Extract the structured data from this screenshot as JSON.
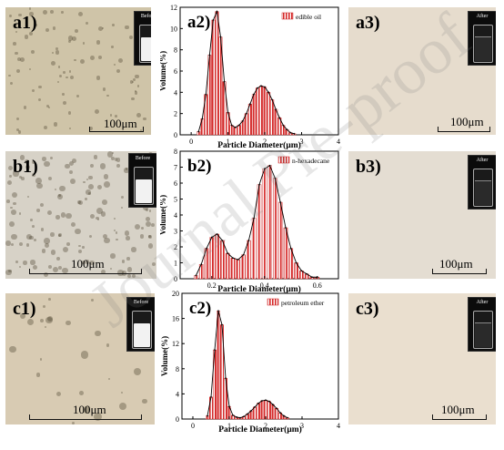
{
  "labels": {
    "a1": "a1)",
    "a2": "a2)",
    "a3": "a3)",
    "b1": "b1)",
    "b2": "b2)",
    "b3": "b3)",
    "c1": "c1)",
    "c2": "c2)",
    "c3": "c3)"
  },
  "thumb_labels": {
    "before": "Before",
    "after": "After"
  },
  "scale_label": "100μm",
  "watermark": "Journal Pre-proof",
  "chart_data": [
    {
      "type": "bar",
      "legend": "edible oil",
      "xlabel": "Particle Diameter(μm)",
      "ylabel": "Volume(%)",
      "xlim": [
        -0.3,
        4.0
      ],
      "ylim": [
        0,
        12
      ],
      "xticks": [
        0,
        1,
        2,
        3,
        4
      ],
      "yticks": [
        0,
        2,
        4,
        6,
        8,
        10,
        12
      ],
      "bar_width": 0.1,
      "x": [
        0.2,
        0.3,
        0.4,
        0.5,
        0.6,
        0.7,
        0.8,
        0.9,
        1.0,
        1.1,
        1.2,
        1.3,
        1.4,
        1.5,
        1.6,
        1.7,
        1.8,
        1.9,
        2.0,
        2.1,
        2.2,
        2.3,
        2.4,
        2.5,
        2.6,
        2.7,
        2.8
      ],
      "values": [
        0.3,
        1.5,
        3.8,
        7.5,
        10.8,
        11.6,
        9.2,
        5.0,
        2.1,
        0.9,
        0.7,
        0.9,
        1.3,
        2.0,
        2.9,
        3.8,
        4.4,
        4.6,
        4.5,
        4.0,
        3.3,
        2.4,
        1.6,
        0.9,
        0.5,
        0.2,
        0.1
      ]
    },
    {
      "type": "bar",
      "legend": "n-hexadecane",
      "xlabel": "Particle Diameter(μm)",
      "ylabel": "Volume(%)",
      "xlim": [
        0.08,
        0.68
      ],
      "ylim": [
        0,
        8
      ],
      "xticks": [
        0.2,
        0.4,
        0.6
      ],
      "yticks": [
        0,
        1,
        2,
        3,
        4,
        5,
        6,
        7,
        8
      ],
      "bar_width": 0.016,
      "x": [
        0.14,
        0.16,
        0.18,
        0.2,
        0.22,
        0.24,
        0.26,
        0.28,
        0.3,
        0.32,
        0.34,
        0.36,
        0.38,
        0.4,
        0.42,
        0.44,
        0.46,
        0.48,
        0.5,
        0.52,
        0.54,
        0.56,
        0.58,
        0.6
      ],
      "values": [
        0.2,
        0.9,
        1.9,
        2.6,
        2.8,
        2.4,
        1.6,
        1.3,
        1.2,
        1.5,
        2.4,
        3.8,
        5.9,
        6.9,
        7.1,
        6.3,
        4.8,
        3.2,
        1.9,
        1.0,
        0.5,
        0.3,
        0.1,
        0.1
      ]
    },
    {
      "type": "bar",
      "legend": "petroleum ether",
      "xlabel": "Particle Diameter(μm)",
      "ylabel": "Volume(%)",
      "xlim": [
        -0.3,
        4.0
      ],
      "ylim": [
        0,
        20
      ],
      "xticks": [
        0,
        1,
        2,
        3,
        4
      ],
      "yticks": [
        0,
        4,
        8,
        12,
        16,
        20
      ],
      "bar_width": 0.1,
      "x": [
        0.4,
        0.5,
        0.6,
        0.7,
        0.8,
        0.9,
        1.0,
        1.1,
        1.2,
        1.3,
        1.4,
        1.5,
        1.6,
        1.7,
        1.8,
        1.9,
        2.0,
        2.1,
        2.2,
        2.3,
        2.4,
        2.5,
        2.6
      ],
      "values": [
        0.5,
        3.5,
        11.0,
        17.2,
        15.0,
        6.5,
        2.0,
        0.6,
        0.3,
        0.2,
        0.4,
        0.8,
        1.3,
        1.9,
        2.5,
        2.9,
        3.0,
        2.8,
        2.3,
        1.7,
        1.0,
        0.5,
        0.2
      ]
    }
  ]
}
